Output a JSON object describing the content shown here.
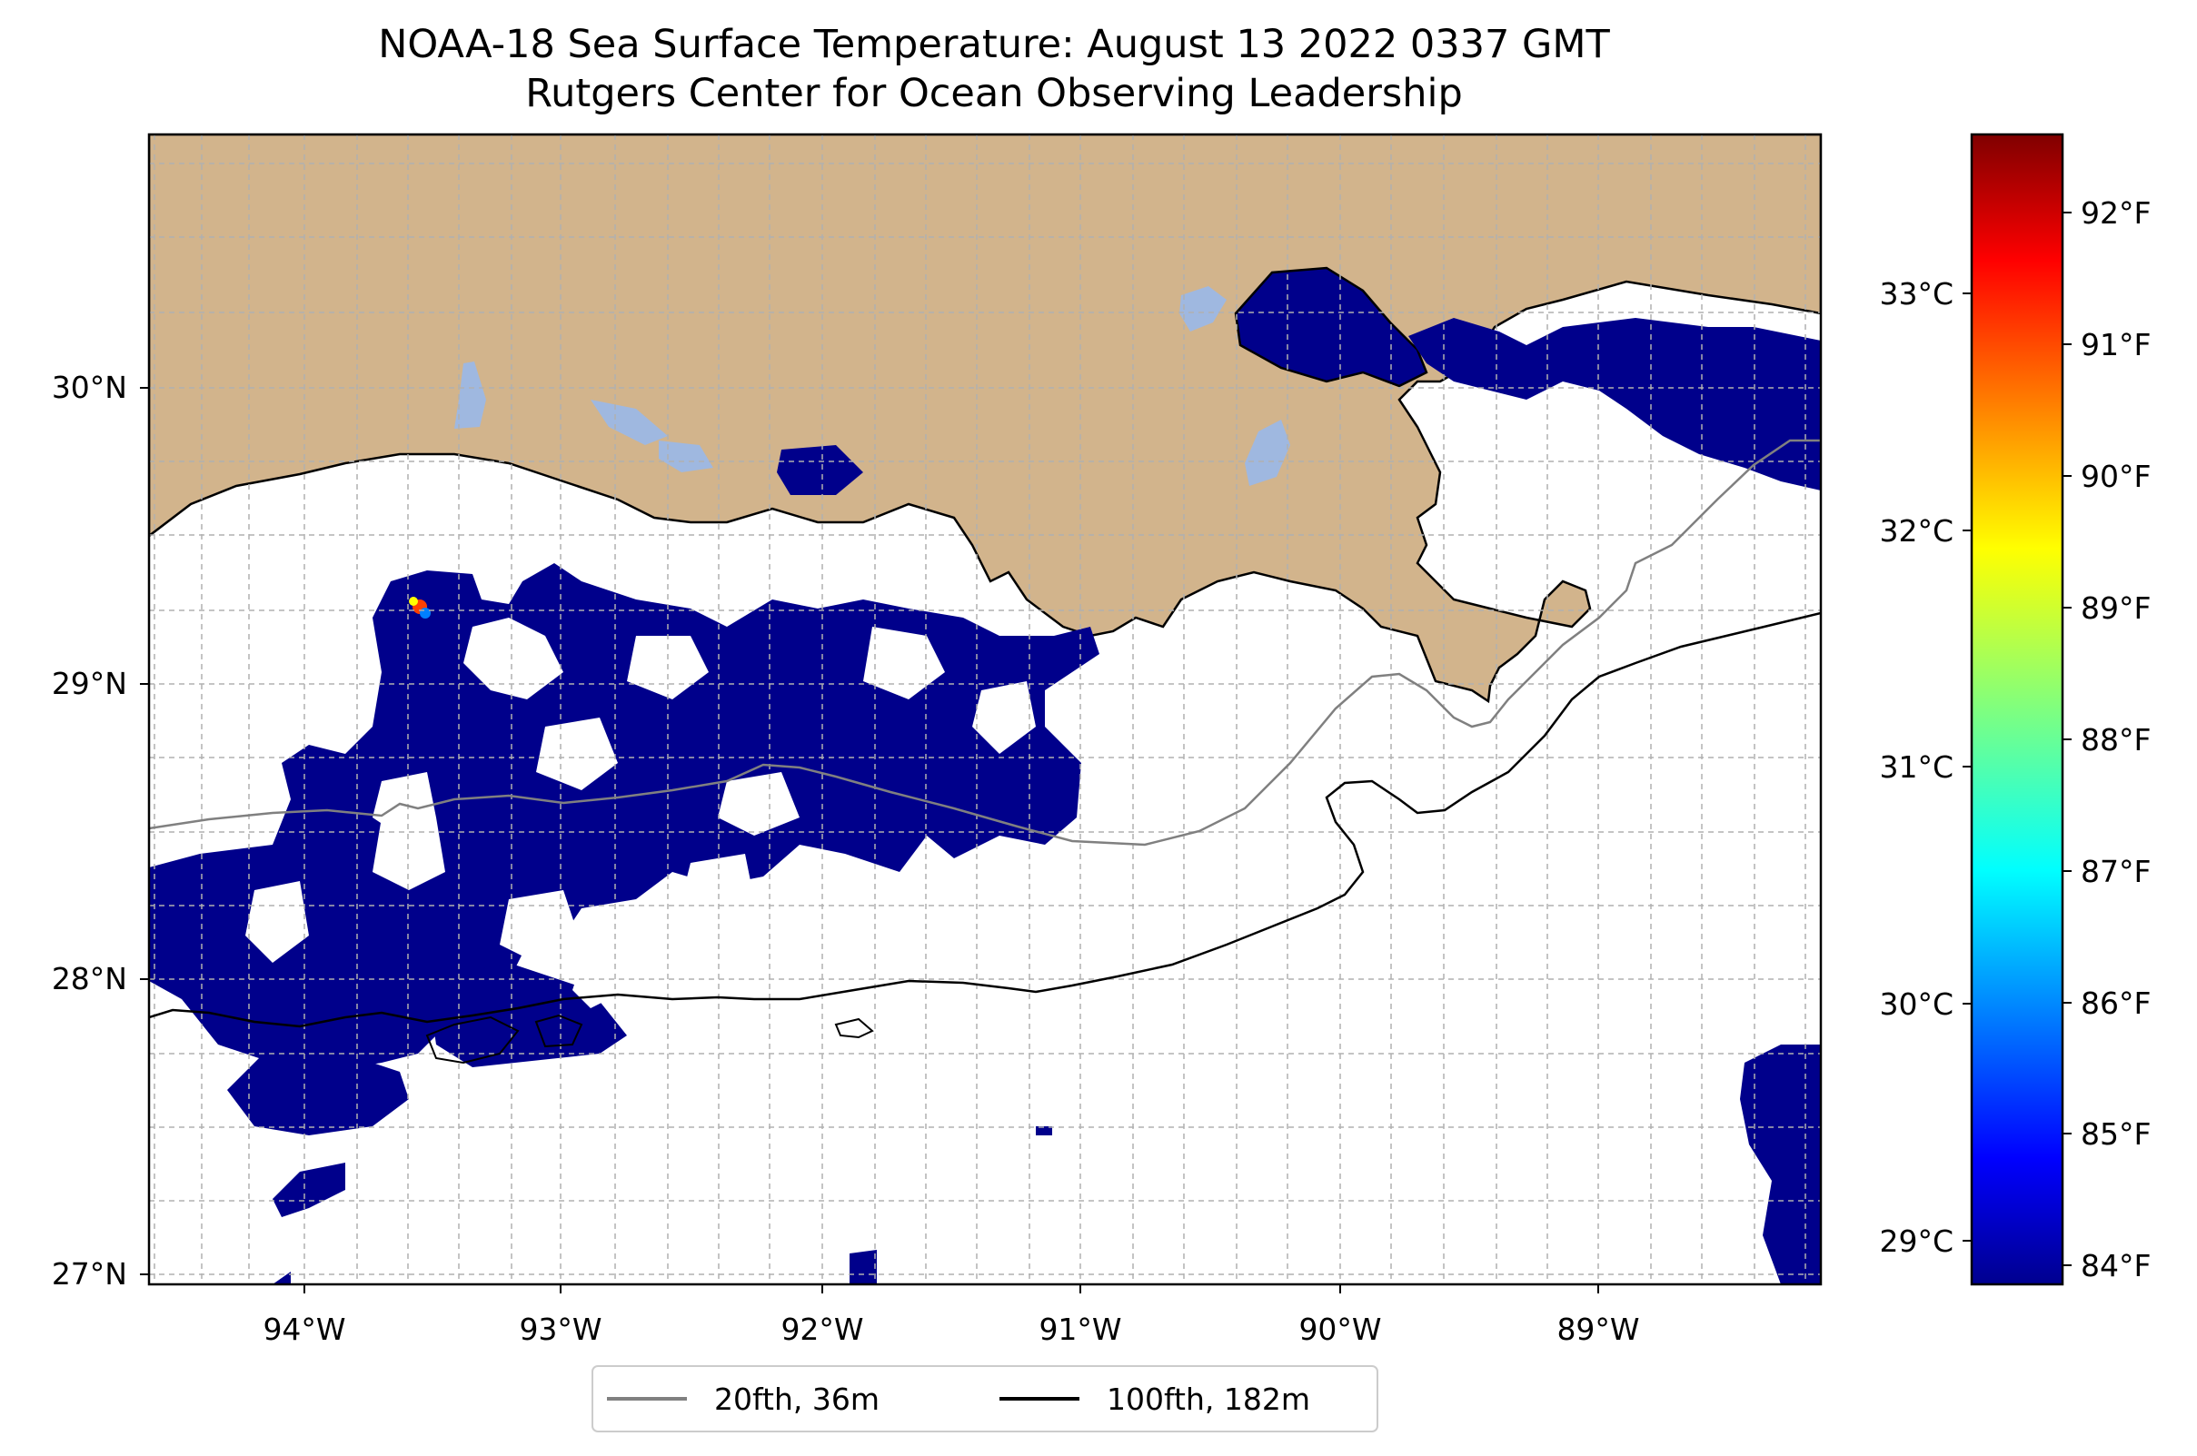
{
  "title": {
    "line1": "NOAA-18 Sea Surface Temperature: August 13 2022 0337 GMT",
    "line2": "Rutgers Center for Ocean Observing Leadership"
  },
  "map": {
    "lon_range": [
      -94.55,
      -88.2
    ],
    "lat_range": [
      26.95,
      30.85
    ],
    "lon_ticks": [
      {
        "value": -94,
        "label": "94°W"
      },
      {
        "value": -93,
        "label": "93°W"
      },
      {
        "value": -92,
        "label": "92°W"
      },
      {
        "value": -91,
        "label": "91°W"
      },
      {
        "value": -90,
        "label": "90°W"
      },
      {
        "value": -89,
        "label": "89°W"
      }
    ],
    "lat_ticks": [
      {
        "value": 27,
        "label": "27°N"
      },
      {
        "value": 28,
        "label": "28°N"
      },
      {
        "value": 29,
        "label": "29°N"
      },
      {
        "value": 30,
        "label": "30°N"
      }
    ],
    "gridlines": "dashed",
    "land_color": "#d2b48c",
    "lake_color": "#9fb8e0",
    "sst_color_low": "#00008b",
    "observed_sst_range": "≈84°F (≤ colorbar minimum) across most cloud-free ocean pixels"
  },
  "legend": {
    "placement": "bottom-center",
    "items": [
      {
        "label": "20fth, 36m",
        "color": "#808080"
      },
      {
        "label": "100fth, 182m",
        "color": "#000000"
      }
    ]
  },
  "colorbar": {
    "colormap": "jet",
    "celsius_ticks": [
      "29°C",
      "30°C",
      "31°C",
      "32°C",
      "33°C"
    ],
    "fahrenheit_ticks": [
      "84°F",
      "85°F",
      "86°F",
      "87°F",
      "88°F",
      "89°F",
      "90°F",
      "91°F",
      "92°F"
    ],
    "range_f": [
      83.8,
      92.6
    ]
  }
}
